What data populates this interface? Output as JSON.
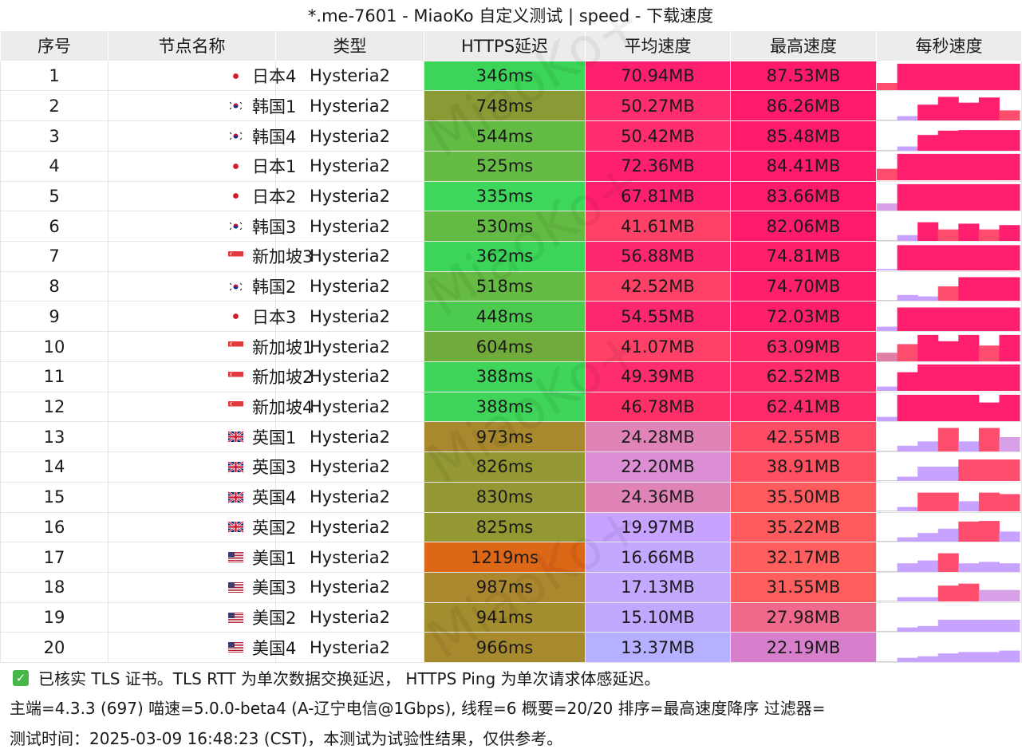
{
  "title": "*.me-7601 - MiaoKo 自定义测试 | speed - 下载速度",
  "columns": [
    "序号",
    "节点名称",
    "类型",
    "HTTPS延迟",
    "平均速度",
    "最高速度",
    "每秒速度"
  ],
  "rows": [
    {
      "idx": "1",
      "flag": "jp",
      "name": "日本4",
      "type": "Hysteria2",
      "latency": "346ms",
      "latency_color": "#3bd55a",
      "avg": "70.94MB",
      "avg_color": "#ff1f70",
      "max": "87.53MB",
      "max_color": "#ff1a6b",
      "per_second": [
        0.25,
        0.92,
        0.92,
        0.92,
        0.92,
        0.92,
        0.92
      ],
      "per_second_colors": [
        "#ff4d6d",
        "#ff1f6e",
        "#ff1f6e",
        "#ff1f6e",
        "#ff1f6e",
        "#ff1f6e",
        "#ff1f6e"
      ]
    },
    {
      "idx": "2",
      "flag": "kr",
      "name": "韩国1",
      "type": "Hysteria2",
      "latency": "748ms",
      "latency_color": "#889b35",
      "avg": "50.27MB",
      "avg_color": "#ff2d6f",
      "max": "86.26MB",
      "max_color": "#ff1a6b",
      "per_second": [
        0.0,
        0.15,
        0.55,
        0.82,
        0.62,
        0.8,
        0.35
      ],
      "per_second_colors": [
        "#cccccc",
        "#c7a2ff",
        "#ff1f6e",
        "#ff1f6e",
        "#ff1f6e",
        "#ff1f6e",
        "#ff4d6d"
      ]
    },
    {
      "idx": "3",
      "flag": "kr",
      "name": "韩国4",
      "type": "Hysteria2",
      "latency": "544ms",
      "latency_color": "#62bb43",
      "avg": "50.42MB",
      "avg_color": "#ff2d6f",
      "max": "85.48MB",
      "max_color": "#ff1a6b",
      "per_second": [
        0.0,
        0.15,
        0.55,
        0.7,
        0.72,
        0.72,
        0.72
      ],
      "per_second_colors": [
        "#cccccc",
        "#c7a2ff",
        "#ff1f6e",
        "#ff1f6e",
        "#ff1f6e",
        "#ff1f6e",
        "#ff1f6e"
      ]
    },
    {
      "idx": "4",
      "flag": "jp",
      "name": "日本1",
      "type": "Hysteria2",
      "latency": "525ms",
      "latency_color": "#65bb43",
      "avg": "72.36MB",
      "avg_color": "#ff1f70",
      "max": "84.41MB",
      "max_color": "#ff1a6b",
      "per_second": [
        0.4,
        0.92,
        0.92,
        0.92,
        0.92,
        0.92,
        0.92
      ],
      "per_second_colors": [
        "#ff4d6d",
        "#ff1f6e",
        "#ff1f6e",
        "#ff1f6e",
        "#ff1f6e",
        "#ff1f6e",
        "#ff1f6e"
      ]
    },
    {
      "idx": "5",
      "flag": "jp",
      "name": "日本2",
      "type": "Hysteria2",
      "latency": "335ms",
      "latency_color": "#3dd75b",
      "avg": "67.81MB",
      "avg_color": "#ff1f70",
      "max": "83.66MB",
      "max_color": "#ff1a6b",
      "per_second": [
        0.25,
        0.92,
        0.92,
        0.92,
        0.92,
        0.92,
        0.92
      ],
      "per_second_colors": [
        "#d8a0e6",
        "#ff1f6e",
        "#ff1f6e",
        "#ff1f6e",
        "#ff1f6e",
        "#ff1f6e",
        "#ff1f6e"
      ]
    },
    {
      "idx": "6",
      "flag": "kr",
      "name": "韩国3",
      "type": "Hysteria2",
      "latency": "530ms",
      "latency_color": "#64bb43",
      "avg": "41.61MB",
      "avg_color": "#ff4067",
      "max": "82.06MB",
      "max_color": "#ff1a6b",
      "per_second": [
        0.0,
        0.2,
        0.65,
        0.4,
        0.6,
        0.4,
        0.55
      ],
      "per_second_colors": [
        "#cccccc",
        "#c7a2ff",
        "#ff1f6e",
        "#ff4d6d",
        "#ff1f6e",
        "#ff4d6d",
        "#ff1f6e"
      ]
    },
    {
      "idx": "7",
      "flag": "sg",
      "name": "新加坡3",
      "type": "Hysteria2",
      "latency": "362ms",
      "latency_color": "#3bd55a",
      "avg": "56.88MB",
      "avg_color": "#ff2870",
      "max": "74.81MB",
      "max_color": "#ff1f6c",
      "per_second": [
        0.05,
        0.88,
        0.88,
        0.88,
        0.88,
        0.88,
        0.88
      ],
      "per_second_colors": [
        "#c7a2ff",
        "#ff1f6e",
        "#ff1f6e",
        "#ff1f6e",
        "#ff1f6e",
        "#ff1f6e",
        "#ff1f6e"
      ]
    },
    {
      "idx": "8",
      "flag": "kr",
      "name": "韩国2",
      "type": "Hysteria2",
      "latency": "518ms",
      "latency_color": "#66bb43",
      "avg": "42.52MB",
      "avg_color": "#ff4067",
      "max": "74.70MB",
      "max_color": "#ff1f6c",
      "per_second": [
        0.0,
        0.2,
        0.15,
        0.5,
        0.82,
        0.82,
        0.82
      ],
      "per_second_colors": [
        "#cccccc",
        "#c7a2ff",
        "#c7a2ff",
        "#ff4d6d",
        "#ff1f6e",
        "#ff1f6e",
        "#ff1f6e"
      ]
    },
    {
      "idx": "9",
      "flag": "jp",
      "name": "日本3",
      "type": "Hysteria2",
      "latency": "448ms",
      "latency_color": "#4ccb4e",
      "avg": "54.55MB",
      "avg_color": "#ff2870",
      "max": "72.03MB",
      "max_color": "#ff1f6c",
      "per_second": [
        0.15,
        0.82,
        0.82,
        0.82,
        0.82,
        0.82,
        0.82
      ],
      "per_second_colors": [
        "#c7a2ff",
        "#ff1f6e",
        "#ff1f6e",
        "#ff1f6e",
        "#ff1f6e",
        "#ff1f6e",
        "#ff1f6e"
      ]
    },
    {
      "idx": "10",
      "flag": "sg",
      "name": "新加坡1",
      "type": "Hysteria2",
      "latency": "604ms",
      "latency_color": "#70ab3c",
      "avg": "41.07MB",
      "avg_color": "#ff4067",
      "max": "63.09MB",
      "max_color": "#ff2a6a",
      "per_second": [
        0.3,
        0.6,
        0.92,
        0.7,
        0.92,
        0.55,
        0.92
      ],
      "per_second_colors": [
        "#e07fa6",
        "#ff4d6d",
        "#ff1f6e",
        "#ff1f6e",
        "#ff1f6e",
        "#ff4d6d",
        "#ff1f6e"
      ]
    },
    {
      "idx": "11",
      "flag": "sg",
      "name": "新加坡2",
      "type": "Hysteria2",
      "latency": "388ms",
      "latency_color": "#3fd45a",
      "avg": "49.39MB",
      "avg_color": "#ff2d6f",
      "max": "62.52MB",
      "max_color": "#ff2a6a",
      "per_second": [
        0.15,
        0.65,
        0.92,
        0.92,
        0.92,
        0.92,
        0.92
      ],
      "per_second_colors": [
        "#c7a2ff",
        "#ff1f6e",
        "#ff1f6e",
        "#ff1f6e",
        "#ff1f6e",
        "#ff1f6e",
        "#ff1f6e"
      ]
    },
    {
      "idx": "12",
      "flag": "sg",
      "name": "新加坡4",
      "type": "Hysteria2",
      "latency": "388ms",
      "latency_color": "#3fd45a",
      "avg": "46.78MB",
      "avg_color": "#ff3068",
      "max": "62.41MB",
      "max_color": "#ff2a6a",
      "per_second": [
        0.15,
        0.92,
        0.92,
        0.92,
        0.92,
        0.65,
        0.92
      ],
      "per_second_colors": [
        "#c7a2ff",
        "#ff1f6e",
        "#ff1f6e",
        "#ff1f6e",
        "#ff1f6e",
        "#ff1f6e",
        "#ff1f6e"
      ]
    },
    {
      "idx": "13",
      "flag": "gb",
      "name": "英国1",
      "type": "Hysteria2",
      "latency": "973ms",
      "latency_color": "#a8892e",
      "avg": "24.28MB",
      "avg_color": "#e084b8",
      "max": "42.55MB",
      "max_color": "#ff4c64",
      "per_second": [
        0.0,
        0.2,
        0.35,
        0.82,
        0.35,
        0.82,
        0.5
      ],
      "per_second_colors": [
        "#cccccc",
        "#c7a2ff",
        "#c7a2ff",
        "#ff4d6d",
        "#c7a2ff",
        "#ff4d6d",
        "#d8a0e6"
      ]
    },
    {
      "idx": "14",
      "flag": "gb",
      "name": "英国3",
      "type": "Hysteria2",
      "latency": "826ms",
      "latency_color": "#939833",
      "avg": "22.20MB",
      "avg_color": "#dc8ed5",
      "max": "38.91MB",
      "max_color": "#ff5061",
      "per_second": [
        0.0,
        0.15,
        0.5,
        0.5,
        0.75,
        0.75,
        0.75
      ],
      "per_second_colors": [
        "#cccccc",
        "#c7a2ff",
        "#c7a2ff",
        "#c7a2ff",
        "#ff4d6d",
        "#ff4d6d",
        "#ff4d6d"
      ]
    },
    {
      "idx": "15",
      "flag": "gb",
      "name": "英国4",
      "type": "Hysteria2",
      "latency": "830ms",
      "latency_color": "#949733",
      "avg": "24.36MB",
      "avg_color": "#e084b8",
      "max": "35.50MB",
      "max_color": "#ff5a5e",
      "per_second": [
        0.0,
        0.15,
        0.65,
        0.65,
        0.35,
        0.65,
        0.6
      ],
      "per_second_colors": [
        "#cccccc",
        "#c7a2ff",
        "#ff4d6d",
        "#ff4d6d",
        "#c7a2ff",
        "#ff4d6d",
        "#ff4d6d"
      ]
    },
    {
      "idx": "16",
      "flag": "gb",
      "name": "英国2",
      "type": "Hysteria2",
      "latency": "825ms",
      "latency_color": "#939833",
      "avg": "19.97MB",
      "avg_color": "#c7a2ff",
      "max": "35.22MB",
      "max_color": "#ff5a5e",
      "per_second": [
        0.0,
        0.15,
        0.3,
        0.45,
        0.7,
        0.72,
        0.35
      ],
      "per_second_colors": [
        "#cccccc",
        "#c7a2ff",
        "#c7a2ff",
        "#c7a2ff",
        "#ff4d6d",
        "#ff4d6d",
        "#c7a2ff"
      ]
    },
    {
      "idx": "17",
      "flag": "us",
      "name": "美国1",
      "type": "Hysteria2",
      "latency": "1219ms",
      "latency_color": "#dc6717",
      "avg": "16.66MB",
      "avg_color": "#c3a8ff",
      "max": "32.17MB",
      "max_color": "#ff5e5e",
      "per_second": [
        0.0,
        0.3,
        0.4,
        0.65,
        0.3,
        0.35,
        0.3
      ],
      "per_second_colors": [
        "#cccccc",
        "#c7a2ff",
        "#c7a2ff",
        "#ff4d6d",
        "#c7a2ff",
        "#c7a2ff",
        "#c7a2ff"
      ]
    },
    {
      "idx": "18",
      "flag": "us",
      "name": "美国3",
      "type": "Hysteria2",
      "latency": "987ms",
      "latency_color": "#ab882d",
      "avg": "17.13MB",
      "avg_color": "#c3a8ff",
      "max": "31.55MB",
      "max_color": "#ff5e5e",
      "per_second": [
        0.0,
        0.15,
        0.15,
        0.55,
        0.62,
        0.4,
        0.4
      ],
      "per_second_colors": [
        "#cccccc",
        "#c7a2ff",
        "#c7a2ff",
        "#ff4d6d",
        "#ff4d6d",
        "#d8a0e6",
        "#d8a0e6"
      ]
    },
    {
      "idx": "19",
      "flag": "us",
      "name": "美国2",
      "type": "Hysteria2",
      "latency": "941ms",
      "latency_color": "#a38d2f",
      "avg": "15.10MB",
      "avg_color": "#c0a8ff",
      "max": "27.98MB",
      "max_color": "#f0688a",
      "per_second": [
        0.0,
        0.15,
        0.2,
        0.42,
        0.42,
        0.42,
        0.42
      ],
      "per_second_colors": [
        "#cccccc",
        "#c7a2ff",
        "#c7a2ff",
        "#c7a2ff",
        "#c7a2ff",
        "#c7a2ff",
        "#c7a2ff"
      ]
    },
    {
      "idx": "20",
      "flag": "us",
      "name": "美国4",
      "type": "Hysteria2",
      "latency": "966ms",
      "latency_color": "#a78a2e",
      "avg": "13.37MB",
      "avg_color": "#b5b0ff",
      "max": "22.19MB",
      "max_color": "#d77fcc",
      "per_second": [
        0.0,
        0.15,
        0.2,
        0.3,
        0.35,
        0.35,
        0.4
      ],
      "per_second_colors": [
        "#cccccc",
        "#c7a2ff",
        "#c7a2ff",
        "#c7a2ff",
        "#c7a2ff",
        "#c7a2ff",
        "#c7a2ff"
      ]
    }
  ],
  "footer": {
    "tls_note": "已核实 TLS 证书。TLS RTT 为单次数据交换延迟， HTTPS Ping 为单次请求体感延迟。",
    "info": "主端=4.3.3 (697) 喵速=5.0.0-beta4 (A-辽宁电信@1Gbps), 线程=6 概要=20/20 排序=最高速度降序 过滤器=",
    "time": "测试时间：2025-03-09 16:48:23 (CST)，本测试为试验性结果，仅供参考。"
  },
  "watermark": "MiaoKo+",
  "colors": {
    "header_bg": "#ececec",
    "check_green": "#47b649"
  }
}
